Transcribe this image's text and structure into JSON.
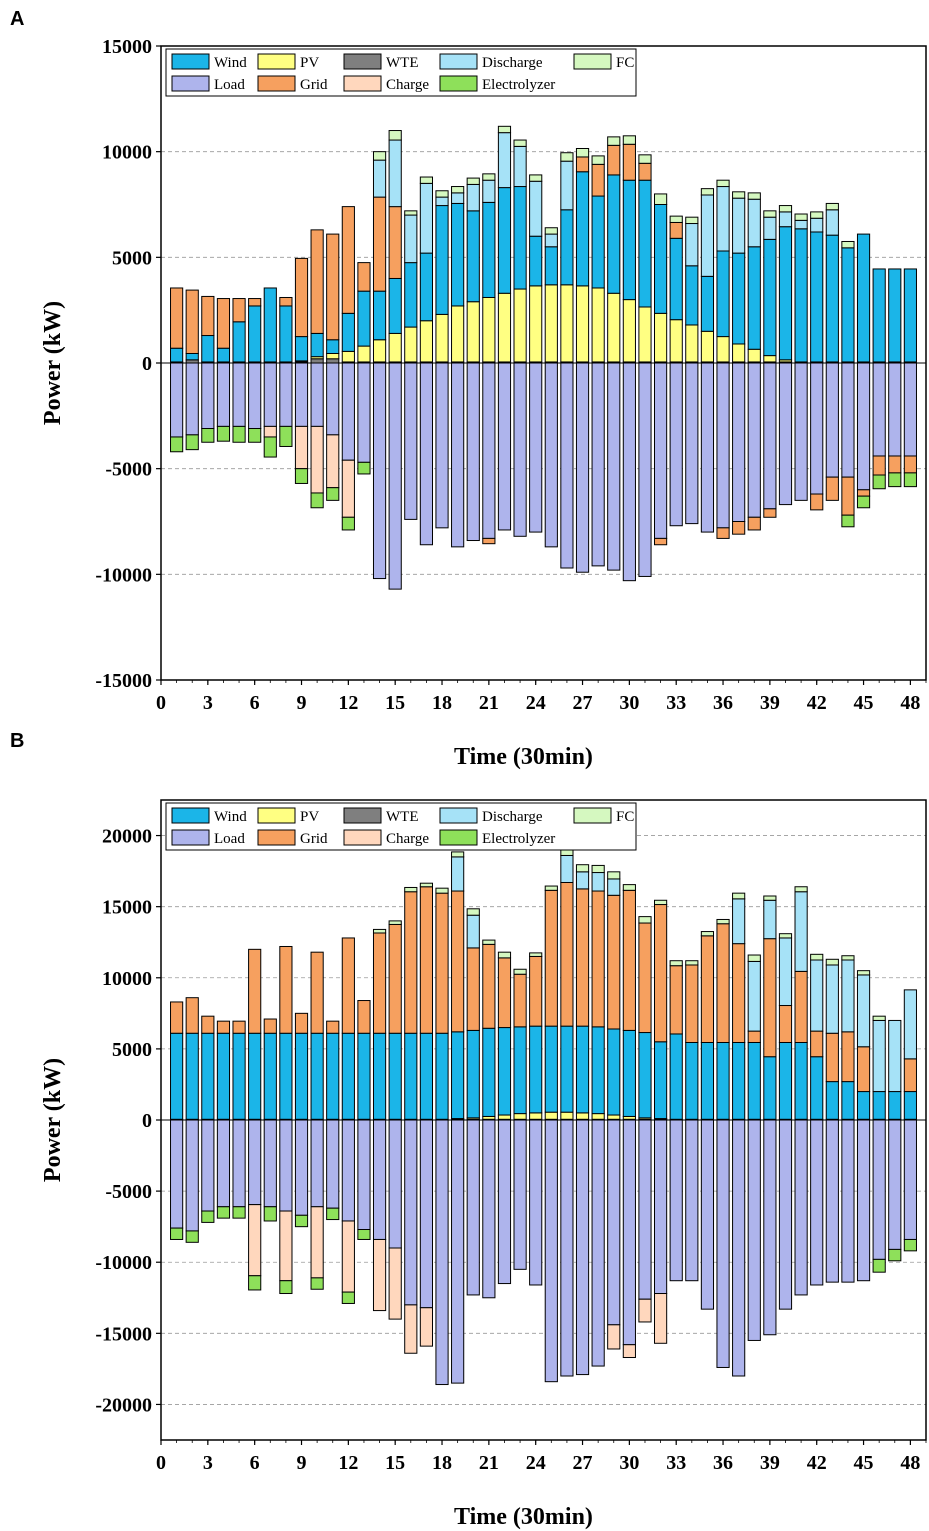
{
  "chart_data": [
    {
      "panel": "A",
      "type": "bar",
      "stacked": true,
      "xlabel": "Time (30min)",
      "ylabel": "Power (kW)",
      "ylim": [
        -15000,
        15000
      ],
      "yticks": [
        -15000,
        -10000,
        -5000,
        0,
        5000,
        10000,
        15000
      ],
      "xlim": [
        0,
        49
      ],
      "xticks": [
        0,
        3,
        6,
        9,
        12,
        15,
        18,
        21,
        24,
        27,
        30,
        33,
        36,
        39,
        42,
        45,
        48
      ],
      "grid": "horizontal dashed",
      "legend_position": "top-left",
      "series": [
        {
          "name": "WTE",
          "values": [
            50,
            150,
            50,
            50,
            50,
            50,
            50,
            50,
            50,
            200,
            200,
            50,
            50,
            50,
            50,
            50,
            50,
            50,
            50,
            50,
            50,
            50,
            50,
            50,
            50,
            50,
            50,
            50,
            50,
            50,
            50,
            50,
            50,
            50,
            50,
            50,
            50,
            50,
            50,
            50,
            50,
            50,
            50,
            50,
            50,
            50,
            50,
            50
          ]
        },
        {
          "name": "PV",
          "values": [
            0,
            0,
            0,
            0,
            0,
            0,
            0,
            0,
            50,
            100,
            250,
            500,
            750,
            1050,
            1350,
            1650,
            1950,
            2250,
            2650,
            2850,
            3050,
            3250,
            3450,
            3600,
            3650,
            3650,
            3600,
            3500,
            3250,
            2950,
            2600,
            2300,
            2000,
            1750,
            1450,
            1200,
            850,
            600,
            300,
            100,
            0,
            0,
            0,
            0,
            0,
            0,
            0,
            0
          ]
        },
        {
          "name": "Wind",
          "values": [
            650,
            300,
            1250,
            650,
            1900,
            2650,
            3500,
            2650,
            1150,
            1100,
            650,
            1800,
            2600,
            2300,
            2600,
            3050,
            3200,
            5150,
            4850,
            4300,
            4500,
            5000,
            4850,
            2350,
            1800,
            3550,
            5400,
            4350,
            5600,
            5650,
            6000,
            5150,
            3850,
            2800,
            2600,
            4050,
            4300,
            4850,
            5500,
            6300,
            6300,
            6150,
            6000,
            5400,
            6050,
            4400,
            4400,
            4400
          ]
        },
        {
          "name": "Grid",
          "values": [
            2850,
            3000,
            1850,
            2350,
            1100,
            350,
            0,
            400,
            3700,
            4900,
            5000,
            5050,
            1350,
            4450,
            3400,
            0,
            0,
            0,
            0,
            0,
            0,
            0,
            0,
            0,
            0,
            0,
            700,
            1500,
            1400,
            1700,
            800,
            0,
            750,
            0,
            0,
            0,
            0,
            0,
            0,
            0,
            0,
            0,
            0,
            0,
            0,
            0,
            0,
            0
          ]
        },
        {
          "name": "Discharge",
          "values": [
            0,
            0,
            0,
            0,
            0,
            0,
            0,
            0,
            0,
            0,
            0,
            0,
            0,
            1750,
            3150,
            2250,
            3300,
            400,
            500,
            1250,
            1050,
            2600,
            1900,
            2600,
            600,
            2300,
            0,
            0,
            0,
            0,
            0,
            0,
            0,
            2000,
            3850,
            3050,
            2600,
            2250,
            1050,
            700,
            400,
            650,
            1200,
            0,
            0,
            0,
            0,
            0
          ]
        },
        {
          "name": "FC",
          "values": [
            0,
            0,
            0,
            0,
            0,
            0,
            0,
            0,
            0,
            0,
            0,
            0,
            0,
            400,
            450,
            200,
            300,
            300,
            300,
            300,
            300,
            300,
            300,
            300,
            300,
            400,
            400,
            400,
            400,
            400,
            400,
            500,
            300,
            300,
            300,
            300,
            300,
            300,
            300,
            300,
            300,
            300,
            300,
            300,
            0,
            0,
            0,
            0
          ]
        },
        {
          "name": "Load",
          "values": [
            -3500,
            -3400,
            -3100,
            -3000,
            -3000,
            -3100,
            -3000,
            -3000,
            -3000,
            -3000,
            -3400,
            -4600,
            -4700,
            -10200,
            -10700,
            -7400,
            -8600,
            -7800,
            -8700,
            -8400,
            -8300,
            -7900,
            -8200,
            -8000,
            -8700,
            -9700,
            -9900,
            -9600,
            -9800,
            -10300,
            -10100,
            -8300,
            -7700,
            -7600,
            -8000,
            -7800,
            -7500,
            -7300,
            -6900,
            -6700,
            -6500,
            -6200,
            -5400,
            -5400,
            -6000,
            -4400,
            -4400,
            -4400
          ]
        },
        {
          "name": "Grid",
          "values": [
            0,
            0,
            0,
            0,
            0,
            0,
            0,
            0,
            0,
            0,
            0,
            0,
            0,
            0,
            0,
            0,
            0,
            0,
            0,
            0,
            -250,
            0,
            0,
            0,
            0,
            0,
            0,
            0,
            0,
            0,
            0,
            -300,
            0,
            0,
            0,
            -500,
            -600,
            -600,
            -400,
            0,
            0,
            -750,
            -1100,
            -1800,
            -300,
            -900,
            -800,
            -800
          ]
        },
        {
          "name": "Charge",
          "values": [
            0,
            0,
            0,
            0,
            0,
            0,
            -500,
            0,
            -2000,
            -3150,
            -2500,
            -2700,
            0,
            0,
            0,
            0,
            0,
            0,
            0,
            0,
            0,
            0,
            0,
            0,
            0,
            0,
            0,
            0,
            0,
            0,
            0,
            0,
            0,
            0,
            0,
            0,
            0,
            0,
            0,
            0,
            0,
            0,
            0,
            0,
            0,
            0,
            0,
            0
          ]
        },
        {
          "name": "Electrolyzer",
          "values": [
            -700,
            -700,
            -650,
            -700,
            -750,
            -650,
            -950,
            -950,
            -700,
            -700,
            -600,
            -600,
            -550,
            0,
            0,
            0,
            0,
            0,
            0,
            0,
            0,
            0,
            0,
            0,
            0,
            0,
            0,
            0,
            0,
            0,
            0,
            0,
            0,
            0,
            0,
            0,
            0,
            0,
            0,
            0,
            0,
            0,
            0,
            -550,
            -550,
            -650,
            -650,
            -650
          ]
        }
      ]
    },
    {
      "panel": "B",
      "type": "bar",
      "stacked": true,
      "xlabel": "Time (30min)",
      "ylabel": "Power (kW)",
      "ylim": [
        -22500,
        22500
      ],
      "yticks": [
        -20000,
        -15000,
        -10000,
        -5000,
        0,
        5000,
        10000,
        15000,
        20000
      ],
      "xlim": [
        0,
        49
      ],
      "xticks": [
        0,
        3,
        6,
        9,
        12,
        15,
        18,
        21,
        24,
        27,
        30,
        33,
        36,
        39,
        42,
        45,
        48
      ],
      "grid": "horizontal dashed",
      "legend_position": "top-left",
      "series": [
        {
          "name": "WTE",
          "values": [
            50,
            50,
            50,
            50,
            50,
            50,
            50,
            50,
            50,
            50,
            50,
            50,
            50,
            50,
            50,
            50,
            50,
            50,
            50,
            50,
            50,
            50,
            50,
            50,
            50,
            50,
            50,
            50,
            50,
            50,
            50,
            50,
            50,
            50,
            50,
            50,
            50,
            50,
            50,
            50,
            50,
            50,
            50,
            50,
            50,
            50,
            50,
            50
          ]
        },
        {
          "name": "PV",
          "values": [
            0,
            0,
            0,
            0,
            0,
            0,
            0,
            0,
            0,
            0,
            0,
            0,
            0,
            0,
            0,
            0,
            0,
            0,
            50,
            100,
            200,
            300,
            400,
            450,
            500,
            500,
            450,
            400,
            300,
            200,
            100,
            50,
            0,
            0,
            0,
            0,
            0,
            0,
            0,
            0,
            0,
            0,
            0,
            0,
            0,
            0,
            0,
            0
          ]
        },
        {
          "name": "Wind",
          "values": [
            6050,
            6050,
            6050,
            6050,
            6050,
            6050,
            6050,
            6050,
            6050,
            6050,
            6050,
            6050,
            6050,
            6050,
            6050,
            6050,
            6050,
            6050,
            6100,
            6150,
            6200,
            6150,
            6100,
            6100,
            6050,
            6050,
            6100,
            6100,
            6050,
            6050,
            6000,
            5400,
            6000,
            5400,
            5400,
            5400,
            5400,
            5400,
            4400,
            5400,
            5400,
            4400,
            2650,
            2650,
            1950,
            1950,
            1950,
            1950
          ]
        },
        {
          "name": "Grid",
          "values": [
            2200,
            2500,
            1200,
            850,
            850,
            5900,
            1000,
            6100,
            1400,
            5700,
            850,
            6700,
            2300,
            7050,
            7650,
            9950,
            10300,
            9850,
            9900,
            5800,
            5900,
            4900,
            3700,
            4900,
            9550,
            10100,
            9650,
            9550,
            9400,
            9850,
            7700,
            9650,
            4800,
            5450,
            7500,
            8350,
            6950,
            800,
            8300,
            2600,
            5000,
            1800,
            3400,
            3500,
            3150,
            0,
            0,
            2300
          ]
        },
        {
          "name": "Discharge",
          "values": [
            0,
            0,
            0,
            0,
            0,
            0,
            0,
            0,
            0,
            0,
            0,
            0,
            0,
            0,
            0,
            0,
            0,
            0,
            2400,
            2300,
            0,
            0,
            0,
            0,
            0,
            1900,
            1200,
            1300,
            1150,
            0,
            0,
            0,
            0,
            0,
            0,
            0,
            3150,
            4900,
            2700,
            4750,
            5600,
            5000,
            4800,
            5050,
            5050,
            5000,
            5000,
            4850
          ]
        },
        {
          "name": "FC",
          "values": [
            0,
            0,
            0,
            0,
            0,
            0,
            0,
            0,
            0,
            0,
            0,
            0,
            0,
            250,
            250,
            300,
            250,
            350,
            350,
            450,
            300,
            400,
            350,
            250,
            300,
            450,
            500,
            500,
            500,
            400,
            450,
            300,
            350,
            300,
            300,
            300,
            400,
            450,
            300,
            300,
            350,
            400,
            400,
            300,
            300,
            300,
            0,
            0
          ]
        },
        {
          "name": "Load",
          "values": [
            -7600,
            -7800,
            -6400,
            -6100,
            -6100,
            -5950,
            -6100,
            -6400,
            -6700,
            -6100,
            -6200,
            -7100,
            -7700,
            -8400,
            -9000,
            -13000,
            -13200,
            -18600,
            -18500,
            -12300,
            -12500,
            -11500,
            -10500,
            -11600,
            -18400,
            -18000,
            -17900,
            -17300,
            -14400,
            -15800,
            -12600,
            -12200,
            -11300,
            -11300,
            -13300,
            -17400,
            -18000,
            -15500,
            -15100,
            -13300,
            -12300,
            -11600,
            -11400,
            -11400,
            -11300,
            -9800,
            -9100,
            -8400
          ]
        },
        {
          "name": "Charge",
          "values": [
            0,
            0,
            0,
            0,
            0,
            -5000,
            0,
            -4900,
            0,
            -5000,
            0,
            -5000,
            0,
            -5000,
            -5000,
            -3400,
            -2700,
            0,
            0,
            0,
            0,
            0,
            0,
            0,
            0,
            0,
            0,
            0,
            -1700,
            -900,
            -1600,
            -3500,
            0,
            0,
            0,
            0,
            0,
            0,
            0,
            0,
            0,
            0,
            0,
            0,
            0,
            0,
            0,
            0
          ]
        },
        {
          "name": "Electrolyzer",
          "values": [
            -800,
            -800,
            -800,
            -800,
            -800,
            -1000,
            -1000,
            -900,
            -800,
            -800,
            -800,
            -800,
            -700,
            0,
            0,
            0,
            0,
            0,
            0,
            0,
            0,
            0,
            0,
            0,
            0,
            0,
            0,
            0,
            0,
            0,
            0,
            0,
            0,
            0,
            0,
            0,
            0,
            0,
            0,
            0,
            0,
            0,
            0,
            0,
            0,
            -900,
            -800,
            -800
          ]
        }
      ]
    }
  ],
  "legend": [
    {
      "name": "Wind",
      "color": "#1bb5e8"
    },
    {
      "name": "PV",
      "color": "#ffff82"
    },
    {
      "name": "WTE",
      "color": "#7f7f7f"
    },
    {
      "name": "Discharge",
      "color": "#a6e2f7"
    },
    {
      "name": "FC",
      "color": "#d5f8c0"
    },
    {
      "name": "Load",
      "color": "#aeb4ec"
    },
    {
      "name": "Grid",
      "color": "#f6a05f"
    },
    {
      "name": "Charge",
      "color": "#ffd7bd"
    },
    {
      "name": "Electrolyzer",
      "color": "#8ee05a"
    }
  ],
  "panel_letters": [
    "A",
    "B"
  ]
}
